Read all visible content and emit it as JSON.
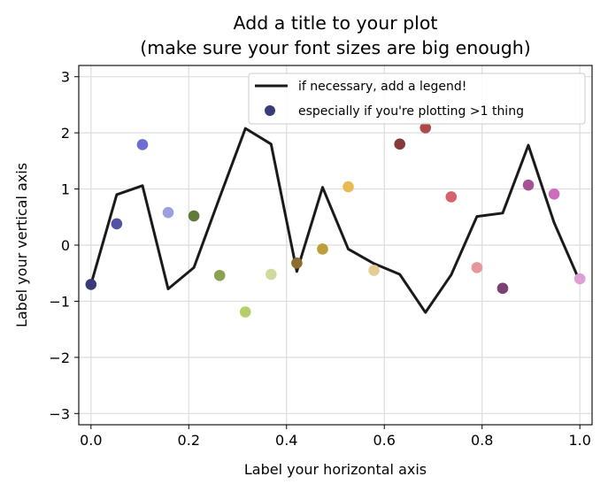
{
  "chart_data": {
    "type": "line+scatter",
    "title_line1": "Add a title to your plot",
    "title_line2": "(make sure your font sizes are big enough)",
    "xlabel": "Label your horizontal axis",
    "ylabel": "Label your vertical axis",
    "xlim": [
      -0.025,
      1.025
    ],
    "ylim": [
      -3.2,
      3.2
    ],
    "xticks": [
      0.0,
      0.2,
      0.4,
      0.6,
      0.8,
      1.0
    ],
    "xtick_labels": [
      "0.0",
      "0.2",
      "0.4",
      "0.6",
      "0.8",
      "1.0"
    ],
    "yticks": [
      -3,
      -2,
      -1,
      0,
      1,
      2,
      3
    ],
    "ytick_labels": [
      "−3",
      "−2",
      "−1",
      "0",
      "1",
      "2",
      "3"
    ],
    "grid": true,
    "legend_position": "top-right",
    "series": [
      {
        "name": "if necessary, add a legend!",
        "kind": "line",
        "color": "#1a1a1a",
        "x": [
          0.0,
          0.0526,
          0.1053,
          0.1579,
          0.2105,
          0.2632,
          0.3158,
          0.3684,
          0.4211,
          0.4737,
          0.5263,
          0.5789,
          0.6316,
          0.6842,
          0.7368,
          0.7895,
          0.8421,
          0.8947,
          0.9474,
          1.0
        ],
        "y": [
          -0.7,
          0.9,
          1.06,
          -0.78,
          -0.4,
          0.85,
          2.08,
          1.8,
          -0.47,
          1.03,
          -0.07,
          -0.33,
          -0.52,
          -1.2,
          -0.53,
          0.51,
          0.57,
          1.78,
          0.4,
          -0.65
        ]
      },
      {
        "name": "especially if you're plotting >1 thing",
        "kind": "scatter",
        "x": [
          0.0,
          0.0526,
          0.1053,
          0.1579,
          0.2105,
          0.2632,
          0.3158,
          0.3684,
          0.4211,
          0.4737,
          0.5263,
          0.5789,
          0.6316,
          0.6842,
          0.7368,
          0.7895,
          0.8421,
          0.8947,
          0.9474,
          1.0
        ],
        "y": [
          -0.7,
          0.38,
          1.79,
          0.58,
          0.52,
          -0.54,
          -1.19,
          -0.52,
          -0.32,
          -0.07,
          1.04,
          -0.45,
          1.8,
          2.09,
          0.86,
          -0.4,
          -0.77,
          1.07,
          0.91,
          -0.6
        ],
        "colors": [
          "#393b79",
          "#5254a3",
          "#6b6ecf",
          "#9c9ede",
          "#637939",
          "#8ca252",
          "#b5cf6b",
          "#cedb9c",
          "#8c6d31",
          "#bd9e39",
          "#e7ba52",
          "#e7cb94",
          "#843c39",
          "#ad494a",
          "#d6616b",
          "#e7969c",
          "#7b4173",
          "#a55194",
          "#ce6dbd",
          "#de9ed6"
        ]
      }
    ]
  }
}
